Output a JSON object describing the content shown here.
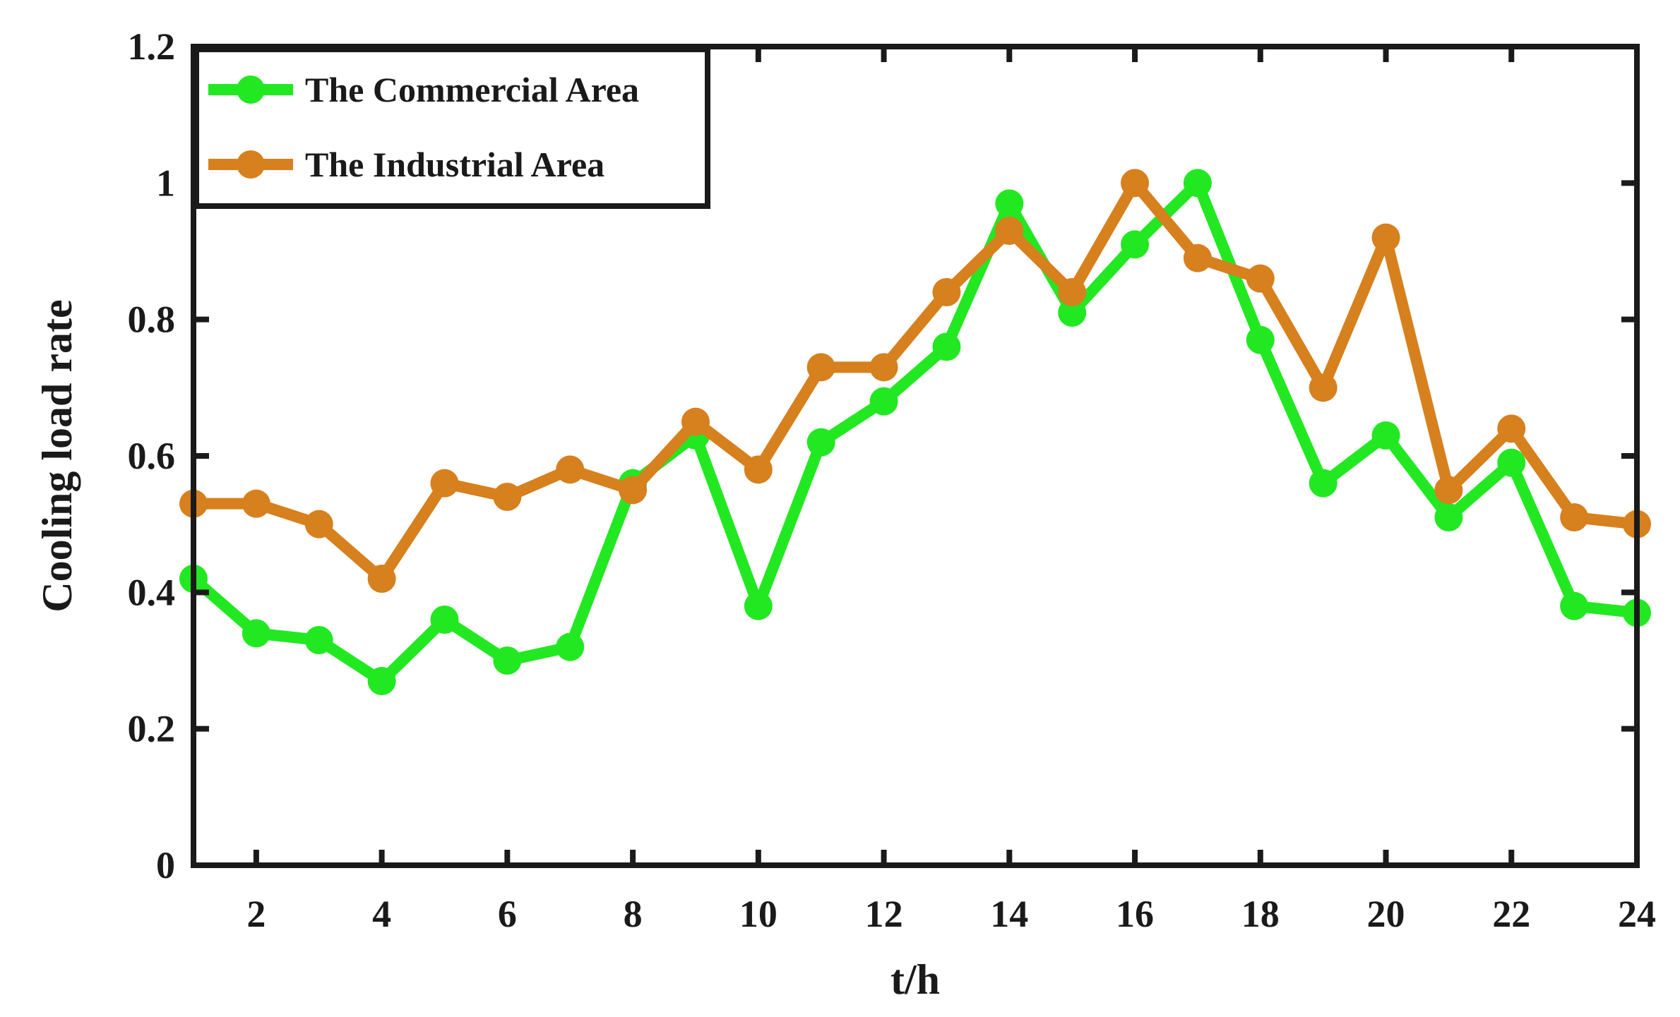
{
  "chart_data": {
    "type": "line",
    "title": "",
    "xlabel": "t/h",
    "ylabel": "Cooling load rate",
    "xlim": [
      1,
      24
    ],
    "ylim": [
      0,
      1.2
    ],
    "xticks": [
      2,
      4,
      6,
      8,
      10,
      12,
      14,
      16,
      18,
      20,
      22,
      24
    ],
    "yticks": [
      0,
      0.2,
      0.4,
      0.6,
      0.8,
      1,
      1.2
    ],
    "xtick_labels": [
      "2",
      "4",
      "6",
      "8",
      "10",
      "12",
      "14",
      "16",
      "18",
      "20",
      "22",
      "24"
    ],
    "ytick_labels": [
      "0",
      "0.2",
      "0.4",
      "0.6",
      "0.8",
      "1",
      "1.2"
    ],
    "grid": false,
    "legend_position": "top-left",
    "x": [
      1,
      2,
      3,
      4,
      5,
      6,
      7,
      8,
      9,
      10,
      11,
      12,
      13,
      14,
      15,
      16,
      17,
      18,
      19,
      20,
      21,
      22,
      23,
      24
    ],
    "series": [
      {
        "name": "The Commercial Area",
        "color": "#22e822",
        "values": [
          0.42,
          0.34,
          0.33,
          0.27,
          0.36,
          0.3,
          0.32,
          0.56,
          0.63,
          0.38,
          0.62,
          0.68,
          0.76,
          0.97,
          0.81,
          0.91,
          1.0,
          0.77,
          0.56,
          0.63,
          0.51,
          0.59,
          0.38,
          0.37
        ]
      },
      {
        "name": "The Industrial Area",
        "color": "#d6801e",
        "values": [
          0.53,
          0.53,
          0.5,
          0.42,
          0.56,
          0.54,
          0.58,
          0.55,
          0.65,
          0.58,
          0.73,
          0.73,
          0.84,
          0.93,
          0.84,
          1.0,
          0.89,
          0.86,
          0.7,
          0.92,
          0.55,
          0.64,
          0.51,
          0.5
        ]
      }
    ]
  }
}
